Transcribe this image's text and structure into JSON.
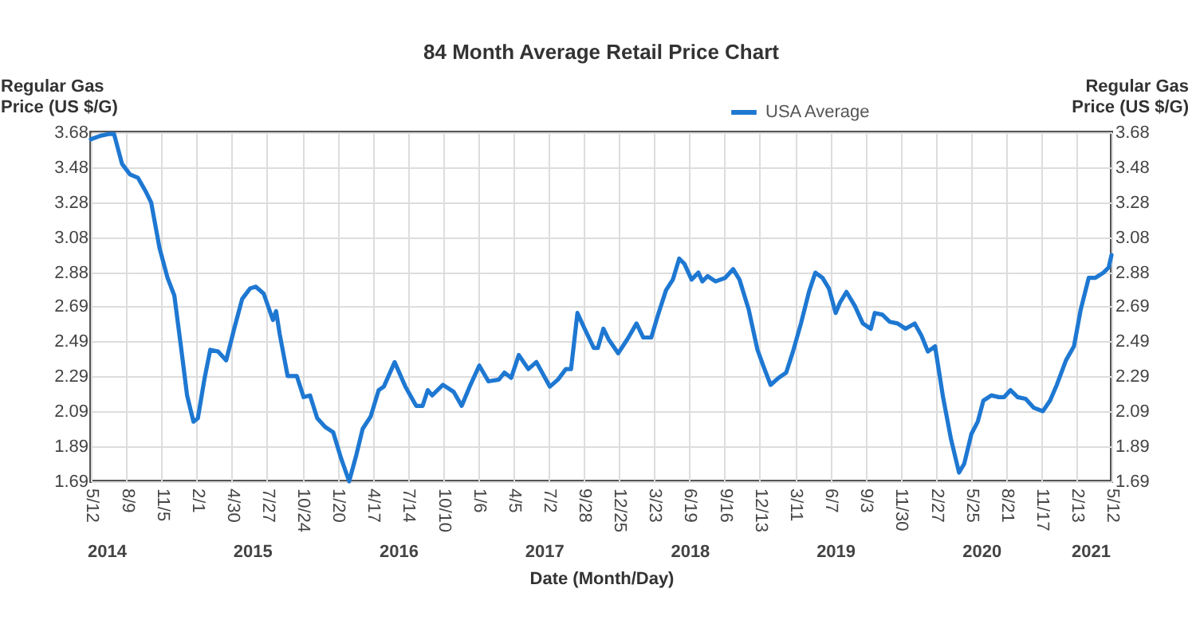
{
  "chart_data": {
    "type": "line",
    "title": "84 Month Average Retail Price Chart",
    "xlabel": "Date (Month/Day)",
    "ylabel": "Regular Gas Price (US $/G)",
    "y2label": "Regular Gas Price (US $/G)",
    "x": [
      "2014-05-12",
      "2014-06-05",
      "2014-06-25",
      "2014-07-09",
      "2014-07-29",
      "2014-08-18",
      "2014-09-07",
      "2014-09-27",
      "2014-10-10",
      "2014-10-31",
      "2014-11-20",
      "2014-12-07",
      "2014-12-23",
      "2015-01-08",
      "2015-01-24",
      "2015-02-04",
      "2015-02-21",
      "2015-03-07",
      "2015-03-27",
      "2015-04-16",
      "2015-05-06",
      "2015-05-26",
      "2015-06-15",
      "2015-06-29",
      "2015-07-19",
      "2015-08-11",
      "2015-08-19",
      "2015-08-28",
      "2015-09-17",
      "2015-10-10",
      "2015-10-27",
      "2015-11-12",
      "2015-11-30",
      "2015-12-20",
      "2016-01-09",
      "2016-01-29",
      "2016-02-18",
      "2016-03-07",
      "2016-03-23",
      "2016-04-12",
      "2016-05-02",
      "2016-05-15",
      "2016-06-11",
      "2016-07-08",
      "2016-08-04",
      "2016-08-20",
      "2016-09-02",
      "2016-09-13",
      "2016-10-10",
      "2016-11-06",
      "2016-11-26",
      "2016-12-16",
      "2017-01-09",
      "2017-02-01",
      "2017-02-27",
      "2017-03-13",
      "2017-03-30",
      "2017-04-18",
      "2017-05-12",
      "2017-06-01",
      "2017-07-05",
      "2017-07-25",
      "2017-08-14",
      "2017-08-27",
      "2017-09-12",
      "2017-09-30",
      "2017-10-23",
      "2017-11-02",
      "2017-11-16",
      "2017-11-29",
      "2017-12-23",
      "2018-01-15",
      "2018-02-07",
      "2018-02-24",
      "2018-03-16",
      "2018-04-02",
      "2018-04-22",
      "2018-05-09",
      "2018-05-25",
      "2018-06-07",
      "2018-06-25",
      "2018-07-12",
      "2018-07-22",
      "2018-08-04",
      "2018-08-24",
      "2018-09-17",
      "2018-10-07",
      "2018-10-23",
      "2018-11-15",
      "2018-12-07",
      "2018-12-23",
      "2019-01-09",
      "2019-01-29",
      "2019-02-17",
      "2019-03-06",
      "2019-03-26",
      "2019-04-15",
      "2019-05-01",
      "2019-05-19",
      "2019-06-04",
      "2019-06-21",
      "2019-07-02",
      "2019-07-18",
      "2019-08-08",
      "2019-08-28",
      "2019-09-17",
      "2019-09-27",
      "2019-10-16",
      "2019-11-03",
      "2019-11-23",
      "2019-12-13",
      "2020-01-05",
      "2020-01-22",
      "2020-02-07",
      "2020-02-25",
      "2020-03-16",
      "2020-04-05",
      "2020-04-25",
      "2020-05-08",
      "2020-05-26",
      "2020-06-11",
      "2020-06-25",
      "2020-07-15",
      "2020-08-03",
      "2020-08-16",
      "2020-09-01",
      "2020-09-19",
      "2020-10-09",
      "2020-10-29",
      "2020-11-21",
      "2020-12-09",
      "2020-12-26",
      "2021-01-18",
      "2021-02-07",
      "2021-02-24",
      "2021-03-16",
      "2021-04-01",
      "2021-04-22",
      "2021-05-05",
      "2021-05-12"
    ],
    "series": [
      {
        "name": "USA Average",
        "color": "#1e78d2",
        "values": [
          3.64,
          3.66,
          3.67,
          3.67,
          3.5,
          3.44,
          3.42,
          3.34,
          3.28,
          3.02,
          2.85,
          2.75,
          2.47,
          2.18,
          2.03,
          2.05,
          2.28,
          2.44,
          2.43,
          2.38,
          2.56,
          2.73,
          2.79,
          2.8,
          2.76,
          2.61,
          2.66,
          2.53,
          2.29,
          2.29,
          2.17,
          2.18,
          2.05,
          2.0,
          1.97,
          1.82,
          1.69,
          1.84,
          1.99,
          2.06,
          2.21,
          2.23,
          2.37,
          2.23,
          2.12,
          2.12,
          2.21,
          2.18,
          2.24,
          2.2,
          2.12,
          2.23,
          2.35,
          2.26,
          2.27,
          2.31,
          2.28,
          2.41,
          2.33,
          2.37,
          2.23,
          2.27,
          2.33,
          2.33,
          2.65,
          2.56,
          2.45,
          2.45,
          2.56,
          2.5,
          2.42,
          2.5,
          2.59,
          2.51,
          2.51,
          2.64,
          2.78,
          2.84,
          2.96,
          2.93,
          2.84,
          2.88,
          2.83,
          2.86,
          2.83,
          2.85,
          2.9,
          2.84,
          2.67,
          2.44,
          2.34,
          2.24,
          2.28,
          2.31,
          2.43,
          2.59,
          2.77,
          2.88,
          2.85,
          2.79,
          2.65,
          2.71,
          2.77,
          2.69,
          2.59,
          2.56,
          2.65,
          2.64,
          2.6,
          2.59,
          2.56,
          2.59,
          2.52,
          2.43,
          2.46,
          2.17,
          1.93,
          1.74,
          1.79,
          1.96,
          2.03,
          2.15,
          2.18,
          2.17,
          2.17,
          2.21,
          2.17,
          2.16,
          2.11,
          2.09,
          2.15,
          2.24,
          2.38,
          2.46,
          2.67,
          2.85,
          2.85,
          2.88,
          2.91,
          2.98
        ]
      }
    ],
    "xlim": [
      "2014-05-12",
      "2021-05-12"
    ],
    "xticks": [
      {
        "value": "2014-05-12",
        "label": "5/12"
      },
      {
        "value": "2014-08-09",
        "label": "8/9"
      },
      {
        "value": "2014-11-05",
        "label": "11/5"
      },
      {
        "value": "2015-02-01",
        "label": "2/1"
      },
      {
        "value": "2015-04-30",
        "label": "4/30"
      },
      {
        "value": "2015-07-27",
        "label": "7/27"
      },
      {
        "value": "2015-10-24",
        "label": "10/24"
      },
      {
        "value": "2016-01-20",
        "label": "1/20"
      },
      {
        "value": "2016-04-17",
        "label": "4/17"
      },
      {
        "value": "2016-07-14",
        "label": "7/14"
      },
      {
        "value": "2016-10-10",
        "label": "10/10"
      },
      {
        "value": "2017-01-06",
        "label": "1/6"
      },
      {
        "value": "2017-04-05",
        "label": "4/5"
      },
      {
        "value": "2017-07-02",
        "label": "7/2"
      },
      {
        "value": "2017-09-28",
        "label": "9/28"
      },
      {
        "value": "2017-12-25",
        "label": "12/25"
      },
      {
        "value": "2018-03-23",
        "label": "3/23"
      },
      {
        "value": "2018-06-19",
        "label": "6/19"
      },
      {
        "value": "2018-09-16",
        "label": "9/16"
      },
      {
        "value": "2018-12-13",
        "label": "12/13"
      },
      {
        "value": "2019-03-11",
        "label": "3/11"
      },
      {
        "value": "2019-06-07",
        "label": "6/7"
      },
      {
        "value": "2019-09-03",
        "label": "9/3"
      },
      {
        "value": "2019-11-30",
        "label": "11/30"
      },
      {
        "value": "2020-02-27",
        "label": "2/27"
      },
      {
        "value": "2020-05-25",
        "label": "5/25"
      },
      {
        "value": "2020-08-21",
        "label": "8/21"
      },
      {
        "value": "2020-11-17",
        "label": "11/17"
      },
      {
        "value": "2021-02-13",
        "label": "2/13"
      },
      {
        "value": "2021-05-12",
        "label": "5/12"
      }
    ],
    "x2lim": [
      "2014-05-12",
      "2021-05-12"
    ],
    "x2ticks": [
      {
        "value": "2014-06-20",
        "label": "2014"
      },
      {
        "value": "2015-06-20",
        "label": "2015"
      },
      {
        "value": "2016-06-20",
        "label": "2016"
      },
      {
        "value": "2017-06-20",
        "label": "2017"
      },
      {
        "value": "2018-06-20",
        "label": "2018"
      },
      {
        "value": "2019-06-20",
        "label": "2019"
      },
      {
        "value": "2020-06-20",
        "label": "2020"
      },
      {
        "value": "2021-03-20",
        "label": "2021"
      }
    ],
    "ylim": [
      1.69,
      3.68
    ],
    "yticks": [
      1.69,
      1.89,
      2.09,
      2.29,
      2.49,
      2.69,
      2.88,
      3.08,
      3.28,
      3.48,
      3.68
    ],
    "y2lim": [
      1.69,
      3.68
    ],
    "y2ticks": [
      1.69,
      1.89,
      2.09,
      2.29,
      2.49,
      2.69,
      2.88,
      3.08,
      3.28,
      3.48,
      3.68
    ],
    "grid": true,
    "legend": "top",
    "marker": "none",
    "line_style": "solid"
  }
}
